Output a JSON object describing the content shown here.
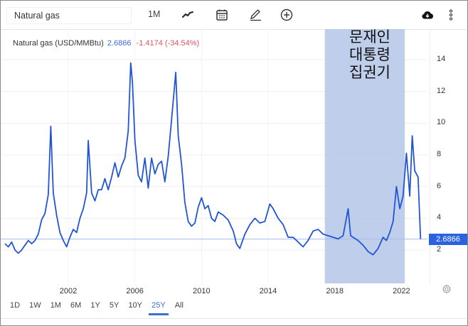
{
  "toolbar": {
    "search_value": "Natural gas",
    "interval_label": "1M",
    "icons": [
      "line-chart-icon",
      "calendar-icon",
      "pencil-icon",
      "plus-circle-icon",
      "cloud-download-icon",
      "more-vert-icon"
    ]
  },
  "legend": {
    "name": "Natural gas (USD/MMBtu)",
    "value": "2.6866",
    "change": "-1.4174 (-34.54%)"
  },
  "price_tag": "2.6866",
  "annotation": {
    "lines": [
      "문재인",
      "대통령",
      "집권기"
    ],
    "color": "#b4c6e8"
  },
  "ranges": {
    "items": [
      "1D",
      "1W",
      "1M",
      "6M",
      "1Y",
      "5Y",
      "10Y",
      "25Y",
      "All"
    ],
    "active": "25Y"
  },
  "colors": {
    "line": "#2255d4",
    "highlight_band": "#b4c6e8",
    "price_tag": "#2b62e0",
    "value_text": "#3b6fd6",
    "change_text": "#e05565"
  },
  "chart_data": {
    "type": "line",
    "title": "Natural gas (USD/MMBtu)",
    "xlabel": "",
    "ylabel": "",
    "x_ticks": [
      "2002",
      "2006",
      "2010",
      "2014",
      "2018",
      "2022"
    ],
    "y_ticks": [
      2,
      4,
      6,
      8,
      10,
      12,
      14
    ],
    "ylim": [
      1,
      15
    ],
    "xlim": [
      1998.2,
      2023.4
    ],
    "grid": true,
    "current_value": 2.6866,
    "reference_line": 2.6866,
    "highlight_region": {
      "x_start": 2017.4,
      "x_end": 2022.2,
      "label": "문재인 대통령 집권기"
    },
    "series": [
      {
        "name": "Natural gas",
        "x": [
          1998.2,
          1998.4,
          1998.6,
          1998.8,
          1999.0,
          1999.2,
          1999.4,
          1999.6,
          1999.8,
          2000.0,
          2000.2,
          2000.4,
          2000.6,
          2000.8,
          2000.95,
          2001.1,
          2001.3,
          2001.5,
          2001.7,
          2001.9,
          2002.1,
          2002.3,
          2002.5,
          2002.7,
          2002.9,
          2003.1,
          2003.2,
          2003.4,
          2003.6,
          2003.8,
          2004.0,
          2004.2,
          2004.4,
          2004.6,
          2004.8,
          2005.0,
          2005.2,
          2005.4,
          2005.6,
          2005.75,
          2005.85,
          2006.0,
          2006.2,
          2006.4,
          2006.6,
          2006.8,
          2007.0,
          2007.2,
          2007.4,
          2007.6,
          2007.8,
          2008.0,
          2008.2,
          2008.45,
          2008.6,
          2008.8,
          2009.0,
          2009.2,
          2009.4,
          2009.6,
          2009.8,
          2010.0,
          2010.2,
          2010.4,
          2010.6,
          2010.8,
          2011.0,
          2011.3,
          2011.6,
          2011.9,
          2012.1,
          2012.3,
          2012.6,
          2012.9,
          2013.2,
          2013.5,
          2013.8,
          2014.1,
          2014.3,
          2014.6,
          2014.9,
          2015.2,
          2015.5,
          2015.8,
          2016.1,
          2016.4,
          2016.7,
          2017.0,
          2017.3,
          2017.6,
          2017.9,
          2018.2,
          2018.5,
          2018.8,
          2018.95,
          2019.1,
          2019.4,
          2019.7,
          2020.0,
          2020.3,
          2020.6,
          2020.9,
          2021.1,
          2021.3,
          2021.5,
          2021.7,
          2021.9,
          2022.1,
          2022.3,
          2022.5,
          2022.65,
          2022.8,
          2023.0,
          2023.15
        ],
        "values": [
          2.4,
          2.2,
          2.5,
          2.0,
          1.8,
          2.0,
          2.3,
          2.6,
          2.4,
          2.6,
          3.0,
          3.9,
          4.3,
          5.5,
          9.8,
          5.6,
          4.2,
          3.1,
          2.6,
          2.2,
          2.8,
          3.3,
          3.1,
          4.0,
          4.6,
          5.6,
          8.9,
          5.6,
          5.1,
          5.8,
          5.8,
          6.5,
          5.8,
          6.6,
          7.5,
          6.6,
          7.3,
          7.8,
          9.5,
          13.8,
          12.6,
          8.9,
          6.7,
          6.3,
          7.8,
          5.9,
          7.8,
          6.8,
          7.4,
          7.6,
          6.3,
          7.9,
          10.2,
          13.2,
          9.2,
          7.4,
          5.0,
          3.8,
          3.5,
          3.7,
          4.7,
          5.3,
          4.6,
          4.8,
          4.0,
          3.8,
          4.4,
          4.2,
          3.9,
          3.2,
          2.4,
          2.1,
          3.0,
          3.6,
          4.0,
          3.7,
          3.8,
          4.9,
          4.6,
          4.0,
          3.6,
          2.8,
          2.8,
          2.5,
          2.2,
          2.6,
          3.2,
          3.3,
          3.0,
          2.9,
          2.8,
          2.7,
          2.9,
          4.6,
          2.9,
          2.8,
          2.6,
          2.3,
          1.9,
          1.7,
          2.1,
          2.8,
          2.6,
          3.1,
          3.8,
          6.0,
          4.6,
          5.4,
          8.1,
          5.4,
          9.2,
          7.0,
          6.6,
          2.6866
        ]
      }
    ]
  }
}
